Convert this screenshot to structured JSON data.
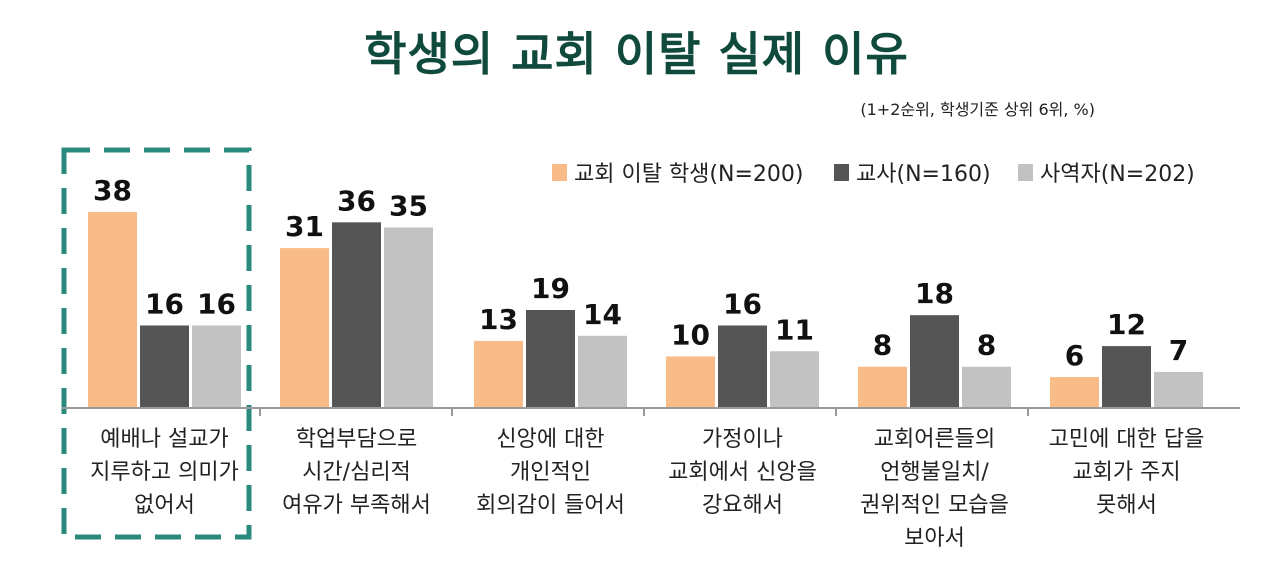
{
  "header": {
    "title": "학생의 교회 이탈 실제 이유",
    "subtitle": "(1+2순위, 학생기준 상위 6위, %)"
  },
  "chart_data": {
    "type": "bar",
    "title": "학생의 교회 이탈 실제 이유",
    "subtitle": "(1+2순위, 학생기준 상위 6위, %)",
    "categories": [
      [
        "예배나 설교가",
        "지루하고 의미가",
        "없어서"
      ],
      [
        "학업부담으로",
        "시간/심리적",
        "여유가 부족해서"
      ],
      [
        "신앙에 대한",
        "개인적인",
        "회의감이 들어서"
      ],
      [
        "가정이나",
        "교회에서 신앙을",
        "강요해서"
      ],
      [
        "교회어른들의",
        "언행불일치/",
        "권위적인 모습을",
        "보아서"
      ],
      [
        "고민에 대한 답을",
        "교회가 주지",
        "못해서"
      ]
    ],
    "series": [
      {
        "name": "교회 이탈 학생(N=200)",
        "color": "#f9bb87",
        "values": [
          38,
          31,
          13,
          10,
          8,
          6
        ]
      },
      {
        "name": "교사(N=160)",
        "color": "#555555",
        "values": [
          16,
          36,
          19,
          16,
          18,
          12
        ]
      },
      {
        "name": "사역자(N=202)",
        "color": "#c2c2c2",
        "values": [
          16,
          35,
          14,
          11,
          8,
          7
        ]
      }
    ],
    "ylim": [
      0,
      40
    ],
    "legend_position": "top-right",
    "highlight": {
      "category_index": 0,
      "color": "#2a8a7e",
      "style": "dashed box"
    }
  }
}
